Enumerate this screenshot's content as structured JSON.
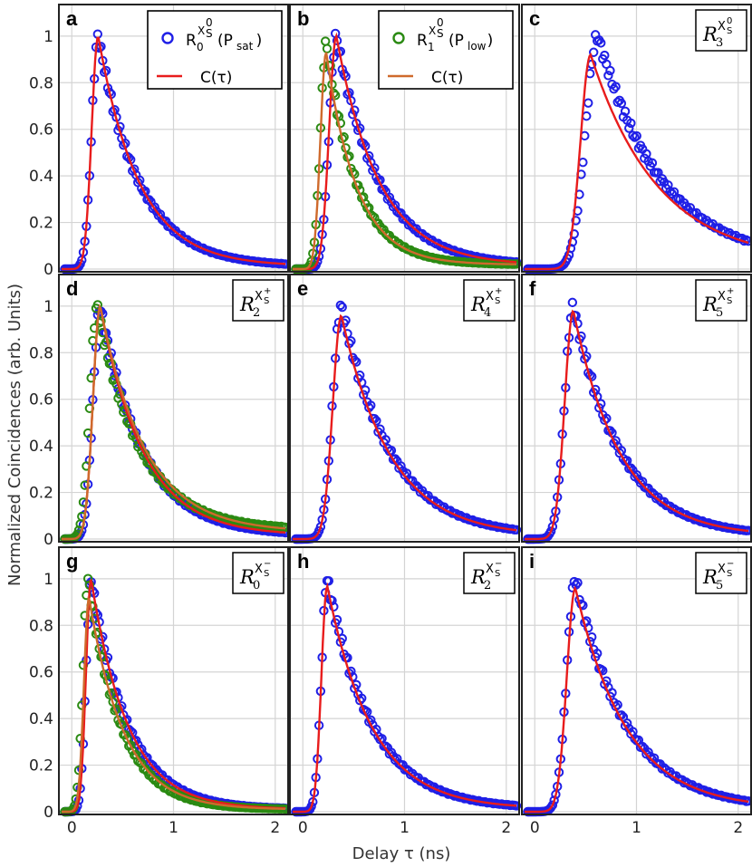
{
  "chart_data": {
    "type": "scatter",
    "ylabel": "Normalized Coincidences (arb. Units)",
    "xlabel": "Delay τ (ns)",
    "xlim": [
      -0.1,
      2.1
    ],
    "ylim": [
      0,
      1.05
    ],
    "xticks": [
      0,
      1,
      2
    ],
    "yticks": [
      0,
      0.2,
      0.4,
      0.6,
      0.8,
      1
    ],
    "grid": true,
    "colors": {
      "blue_markers": "#1f1fe6",
      "green_markers": "#2a8a12",
      "red_fit": "#e81c1c",
      "orange_fit": "#cf6a2c"
    },
    "legend_a": [
      {
        "marker": "circle",
        "color": "#1f1fe6",
        "main": "R",
        "sub": "0",
        "sup": "X",
        "supsub": "S",
        "supsup": "0",
        "suffix": "(P",
        "suffix_sub": "sat",
        "suffix_end": ")"
      },
      {
        "marker": "line",
        "color": "#e81c1c",
        "text": "C(τ)"
      }
    ],
    "legend_b": [
      {
        "marker": "circle",
        "color": "#2a8a12",
        "main": "R",
        "sub": "1",
        "sup": "X",
        "supsub": "S",
        "supsup": "0",
        "suffix": "(P",
        "suffix_sub": "low",
        "suffix_end": ")"
      },
      {
        "marker": "line",
        "color": "#cf6a2c",
        "text": "C(τ)"
      }
    ],
    "panels": [
      {
        "letter": "a",
        "series": [
          {
            "color": "#1f1fe6",
            "peak": 0.26,
            "rise": 0.09,
            "decay": 0.4,
            "tail": 0.012
          }
        ],
        "fit": {
          "color": "#e81c1c",
          "peak": 0.26,
          "rise": 0.09,
          "decay": 0.4,
          "tail": 0.012
        }
      },
      {
        "letter": "b",
        "series": [
          {
            "color": "#1f1fe6",
            "peak": 0.33,
            "rise": 0.1,
            "decay": 0.42,
            "tail": 0.015
          },
          {
            "color": "#2a8a12",
            "peak": 0.23,
            "rise": 0.08,
            "decay": 0.3,
            "tail": 0.02,
            "amp": 0.97
          }
        ],
        "fit": {
          "color": "#e81c1c",
          "peak": 0.33,
          "rise": 0.1,
          "decay": 0.42,
          "tail": 0.015
        },
        "fit2": {
          "color": "#cf6a2c",
          "peak": 0.23,
          "rise": 0.08,
          "decay": 0.3,
          "tail": 0.02,
          "amp": 0.93
        }
      },
      {
        "letter": "c",
        "tag": {
          "main": "R",
          "sub": "3",
          "sup": "X",
          "supsub": "S",
          "supsup": "0"
        },
        "series": [
          {
            "color": "#1f1fe6",
            "peak": 0.62,
            "rise": 0.17,
            "decay": 0.62,
            "tail": 0.03
          }
        ],
        "fit": {
          "color": "#e81c1c",
          "peak": 0.55,
          "rise": 0.14,
          "decay": 0.66,
          "tail": 0.03,
          "amp": 0.92
        }
      },
      {
        "letter": "d",
        "tag": {
          "main": "R",
          "sub": "2",
          "sup": "X",
          "supsub": "S",
          "supsup": "+"
        },
        "series": [
          {
            "color": "#1f1fe6",
            "peak": 0.28,
            "rise": 0.1,
            "decay": 0.42,
            "tail": 0.015
          },
          {
            "color": "#2a8a12",
            "peak": 0.25,
            "rise": 0.1,
            "decay": 0.42,
            "tail": 0.04
          }
        ],
        "fit": {
          "color": "#e81c1c",
          "peak": 0.28,
          "rise": 0.1,
          "decay": 0.42,
          "tail": 0.015
        },
        "fit2": {
          "color": "#cf6a2c",
          "peak": 0.28,
          "rise": 0.1,
          "decay": 0.44,
          "tail": 0.03
        }
      },
      {
        "letter": "e",
        "tag": {
          "main": "R",
          "sub": "4",
          "sup": "X",
          "supsub": "S",
          "supsup": "+"
        },
        "series": [
          {
            "color": "#1f1fe6",
            "peak": 0.38,
            "rise": 0.12,
            "decay": 0.48,
            "tail": 0.012
          }
        ],
        "fit": {
          "color": "#e81c1c",
          "peak": 0.38,
          "rise": 0.12,
          "decay": 0.48,
          "tail": 0.012,
          "amp": 0.96
        }
      },
      {
        "letter": "f",
        "tag": {
          "main": "R",
          "sub": "5",
          "sup": "X",
          "supsub": "S",
          "supsup": "+"
        },
        "series": [
          {
            "color": "#1f1fe6",
            "peak": 0.38,
            "rise": 0.12,
            "decay": 0.46,
            "tail": 0.012
          }
        ],
        "fit": {
          "color": "#e81c1c",
          "peak": 0.38,
          "rise": 0.12,
          "decay": 0.46,
          "tail": 0.012,
          "amp": 0.98
        }
      },
      {
        "letter": "g",
        "tag": {
          "main": "R",
          "sub": "0",
          "sup": "X",
          "supsub": "S",
          "supsup": "−"
        },
        "series": [
          {
            "color": "#1f1fe6",
            "peak": 0.19,
            "rise": 0.07,
            "decay": 0.36,
            "tail": 0.01
          },
          {
            "color": "#2a8a12",
            "peak": 0.16,
            "rise": 0.07,
            "decay": 0.32,
            "tail": 0.01
          }
        ],
        "fit": {
          "color": "#e81c1c",
          "peak": 0.19,
          "rise": 0.07,
          "decay": 0.36,
          "tail": 0.01
        },
        "fit2": {
          "color": "#cf6a2c",
          "peak": 0.17,
          "rise": 0.07,
          "decay": 0.34,
          "tail": 0.01,
          "amp": 0.92
        }
      },
      {
        "letter": "h",
        "tag": {
          "main": "R",
          "sub": "2",
          "sup": "X",
          "supsub": "S",
          "supsup": "−"
        },
        "series": [
          {
            "color": "#1f1fe6",
            "peak": 0.24,
            "rise": 0.08,
            "decay": 0.44,
            "tail": 0.012
          }
        ],
        "fit": {
          "color": "#e81c1c",
          "peak": 0.24,
          "rise": 0.08,
          "decay": 0.44,
          "tail": 0.012,
          "amp": 0.97
        }
      },
      {
        "letter": "i",
        "tag": {
          "main": "R",
          "sub": "5",
          "sup": "X",
          "supsub": "S",
          "supsup": "−"
        },
        "series": [
          {
            "color": "#1f1fe6",
            "peak": 0.4,
            "rise": 0.12,
            "decay": 0.5,
            "tail": 0.012
          }
        ],
        "fit": {
          "color": "#e81c1c",
          "peak": 0.4,
          "rise": 0.12,
          "decay": 0.5,
          "tail": 0.012,
          "amp": 0.96
        }
      }
    ]
  }
}
